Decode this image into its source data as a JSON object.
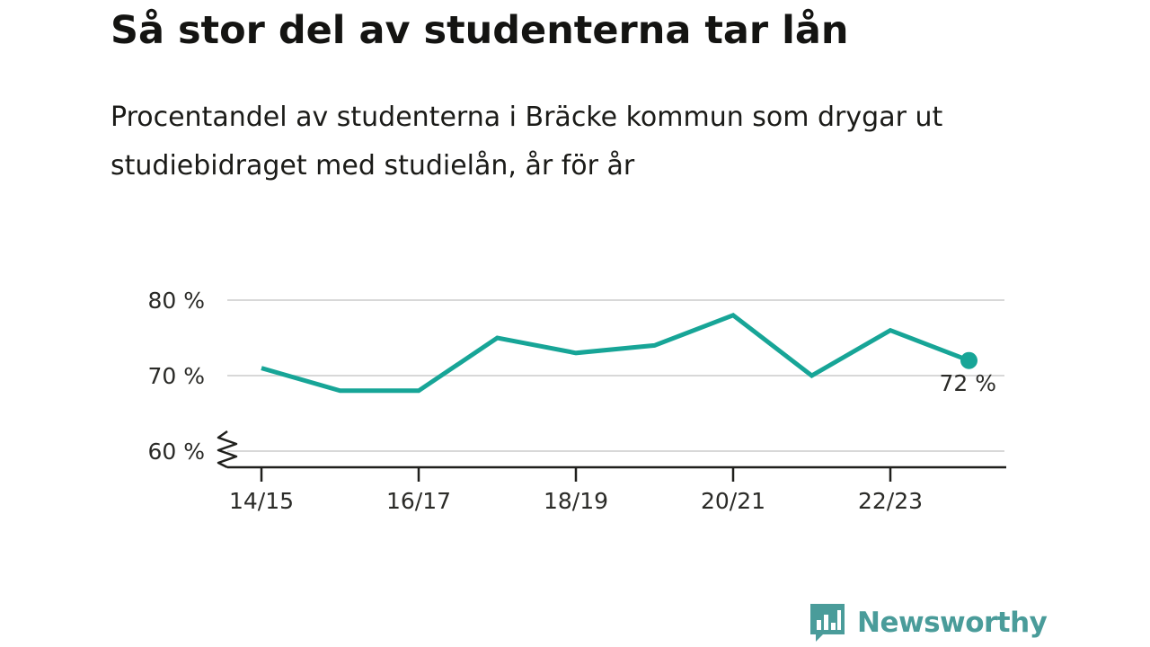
{
  "title": "Så stor del av studenterna tar lån",
  "subtitle": "Procentandel av studenterna i Bräcke kommun som drygar ut studiebidraget med studielån, år för år",
  "brand": {
    "name": "Newsworthy",
    "color": "#4a9c9a",
    "icon": "bar-chart-speech-bubble-icon"
  },
  "chart_data": {
    "type": "line",
    "x": [
      "14/15",
      "15/16",
      "16/17",
      "17/18",
      "18/19",
      "19/20",
      "20/21",
      "21/22",
      "22/23",
      "23/24"
    ],
    "series": [
      {
        "values": [
          71,
          68,
          68,
          75,
          73,
          74,
          78,
          70,
          76,
          72
        ],
        "color": "#17a597"
      }
    ],
    "x_tick_labels": [
      "14/15",
      "16/17",
      "18/19",
      "20/21",
      "22/23"
    ],
    "y_ticks": [
      60,
      70,
      80
    ],
    "y_tick_labels": [
      "60 %",
      "70 %",
      "80 %"
    ],
    "ylim": [
      60,
      82
    ],
    "y_axis_break": true,
    "grid": true,
    "end_label": "72 %"
  }
}
